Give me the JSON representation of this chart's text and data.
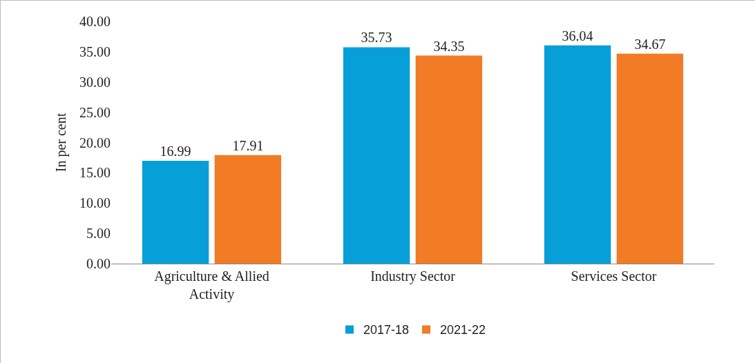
{
  "chart_data": {
    "type": "bar",
    "ylabel": "In per cent",
    "categories": [
      "Agriculture & Allied Activity",
      "Industry Sector",
      "Services Sector"
    ],
    "series": [
      {
        "name": "2017-18",
        "color": "#069fd8",
        "values": [
          16.99,
          35.73,
          36.04
        ]
      },
      {
        "name": "2021-22",
        "color": "#f27b25",
        "values": [
          17.91,
          34.35,
          34.67
        ]
      }
    ],
    "ylim": [
      0,
      40
    ],
    "yticks": [
      {
        "value": 0,
        "label": "0.00"
      },
      {
        "value": 5,
        "label": "5.00"
      },
      {
        "value": 10,
        "label": "10.00"
      },
      {
        "value": 15,
        "label": "15.00"
      },
      {
        "value": 20,
        "label": "20.00"
      },
      {
        "value": 25,
        "label": "25.00"
      },
      {
        "value": 30,
        "label": "30.00"
      },
      {
        "value": 35,
        "label": "35.00"
      },
      {
        "value": 40,
        "label": "40.00"
      }
    ],
    "grid": false,
    "legend": "bottom",
    "data_labels": true
  }
}
